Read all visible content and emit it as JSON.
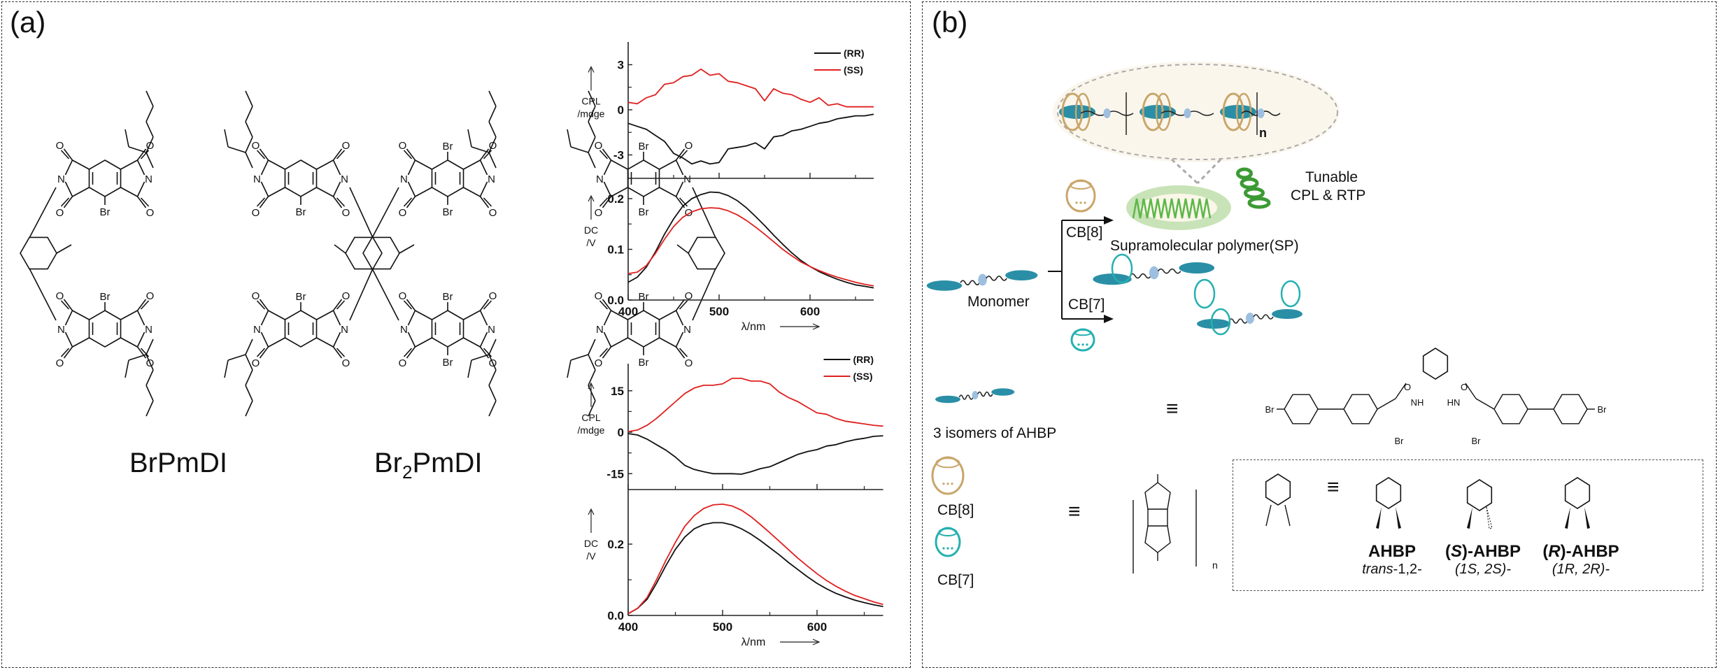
{
  "panel_a": {
    "label": "(a)",
    "molecules": [
      {
        "name": "BrPmDI"
      },
      {
        "name_main": "Br",
        "name_sub": "2",
        "name_rest": "PmDI"
      }
    ],
    "atom_labels": {
      "br": "Br",
      "o": "O",
      "n": "N",
      "nh": "NH",
      "hn": "HN"
    }
  },
  "panel_b": {
    "label": "(b)",
    "polymer_repeat": "n",
    "cb8_label": "CB[8]",
    "cb7_label": "CB[7]",
    "sp_label": "Supramolecular polymer(SP)",
    "tunable_line1": "Tunable",
    "tunable_line2": "CPL & RTP",
    "monomer_label": "Monomer",
    "isomers_label": "3 isomers of AHBP",
    "equiv": "≡",
    "cb_repeat": "n",
    "isomers": [
      {
        "name": "AHBP",
        "prefix": "",
        "config": "trans",
        "config_rest": "-1,2-"
      },
      {
        "name": "-AHBP",
        "prefix": "S",
        "config": "(1S, 2S)-",
        "config_rest": ""
      },
      {
        "name": "-AHBP",
        "prefix": "R",
        "config": "(1R, 2R)-",
        "config_rest": ""
      }
    ],
    "colors": {
      "cb8": "#c9a66b",
      "cb7": "#26b0b0",
      "monomer": "#2a8fa6",
      "viologen": "#9dbfe0",
      "sp_green": "#5cb848"
    }
  },
  "chart_data": [
    {
      "type": "line",
      "title": "BrPmDI",
      "xlabel": "λ/nm",
      "xlim": [
        400,
        670
      ],
      "xticks": [
        400,
        500,
        600
      ],
      "x": [
        400,
        410,
        420,
        430,
        440,
        450,
        460,
        470,
        480,
        490,
        500,
        510,
        520,
        530,
        540,
        550,
        560,
        570,
        580,
        590,
        600,
        610,
        620,
        630,
        640,
        650,
        660,
        670
      ],
      "legend": [
        "(RR)",
        "(SS)"
      ],
      "legend_position": "top-right",
      "colors": {
        "RR": "#111111",
        "SS": "#e02020"
      },
      "panels": [
        {
          "ylabel_1": "CPL",
          "ylabel_2": "/mdge",
          "ylim": [
            -4.5,
            4.5
          ],
          "yticks": [
            3,
            0,
            -3
          ],
          "ytick_labels": [
            "3",
            "0",
            "-3"
          ],
          "series": [
            {
              "name": "(RR)",
              "values": [
                -0.9,
                -1.1,
                -1.3,
                -1.7,
                -2.1,
                -2.9,
                -3.2,
                -3.6,
                -3.4,
                -3.6,
                -3.5,
                -2.6,
                -2.5,
                -2.4,
                -2.2,
                -2.6,
                -1.8,
                -1.7,
                -1.4,
                -1.3,
                -1.1,
                -0.9,
                -0.8,
                -0.6,
                -0.5,
                -0.4,
                -0.4,
                -0.3
              ]
            },
            {
              "name": "(SS)",
              "values": [
                0.5,
                0.4,
                0.8,
                1.0,
                1.7,
                1.8,
                2.2,
                2.3,
                2.7,
                2.3,
                2.4,
                1.9,
                1.8,
                1.6,
                1.4,
                0.6,
                1.4,
                1.1,
                1.0,
                0.7,
                0.5,
                0.8,
                0.3,
                0.4,
                0.2,
                0.2,
                0.2,
                0.2
              ]
            }
          ]
        },
        {
          "ylabel_1": "DC",
          "ylabel_2": "/V",
          "ylim": [
            0,
            0.24
          ],
          "yticks": [
            0.2,
            0.1,
            0.0
          ],
          "ytick_labels": [
            "0.2",
            "0.1",
            "0.0"
          ],
          "series": [
            {
              "name": "(RR)",
              "values": [
                0.035,
                0.045,
                0.065,
                0.095,
                0.13,
                0.16,
                0.185,
                0.2,
                0.208,
                0.213,
                0.212,
                0.206,
                0.196,
                0.182,
                0.165,
                0.147,
                0.128,
                0.11,
                0.093,
                0.078,
                0.066,
                0.056,
                0.048,
                0.041,
                0.035,
                0.03,
                0.027,
                0.024
              ]
            },
            {
              "name": "(SS)",
              "values": [
                0.052,
                0.055,
                0.068,
                0.092,
                0.12,
                0.145,
                0.163,
                0.174,
                0.18,
                0.182,
                0.181,
                0.176,
                0.168,
                0.157,
                0.144,
                0.13,
                0.115,
                0.1,
                0.087,
                0.075,
                0.066,
                0.058,
                0.051,
                0.045,
                0.04,
                0.035,
                0.031,
                0.028
              ]
            }
          ]
        }
      ]
    },
    {
      "type": "line",
      "title": "Br2PmDI",
      "xlabel": "λ/nm",
      "xlim": [
        400,
        670
      ],
      "xticks": [
        400,
        500,
        600
      ],
      "x": [
        400,
        410,
        420,
        430,
        440,
        450,
        460,
        470,
        480,
        490,
        500,
        510,
        520,
        530,
        540,
        550,
        560,
        570,
        580,
        590,
        600,
        610,
        620,
        630,
        640,
        650,
        660,
        670
      ],
      "legend": [
        "(RR)",
        "(SS)"
      ],
      "legend_position": "top-right",
      "colors": {
        "RR": "#111111",
        "SS": "#e02020"
      },
      "panels": [
        {
          "ylabel_1": "CPL",
          "ylabel_2": "/mdge",
          "ylim": [
            -20,
            25
          ],
          "yticks": [
            15,
            0,
            -15
          ],
          "ytick_labels": [
            "15",
            "0",
            "-15"
          ],
          "series": [
            {
              "name": "(RR)",
              "values": [
                -0.5,
                -1,
                -2.5,
                -4.5,
                -6.5,
                -9,
                -12,
                -13.5,
                -14.3,
                -15,
                -15,
                -15,
                -15.2,
                -14.3,
                -13.2,
                -12.5,
                -11,
                -9.5,
                -8,
                -7,
                -6.3,
                -5,
                -4.5,
                -3.5,
                -2.7,
                -2.2,
                -1.5,
                -1.3
              ]
            },
            {
              "name": "(SS)",
              "values": [
                0.2,
                0.8,
                2.5,
                5,
                8,
                11,
                14,
                16,
                17,
                17,
                17.5,
                19.5,
                19.5,
                18.5,
                18.5,
                17.5,
                14.5,
                12.5,
                11,
                9,
                7,
                6.5,
                5,
                4,
                3.5,
                3,
                2.5,
                2.2
              ]
            }
          ]
        },
        {
          "ylabel_1": "DC",
          "ylabel_2": "/V",
          "ylim": [
            0,
            0.35
          ],
          "yticks": [
            0.2,
            0.0
          ],
          "ytick_labels": [
            "0.2",
            "0.0"
          ],
          "series": [
            {
              "name": "(RR)",
              "values": [
                0.005,
                0.02,
                0.045,
                0.09,
                0.14,
                0.185,
                0.22,
                0.243,
                0.255,
                0.26,
                0.26,
                0.254,
                0.243,
                0.228,
                0.21,
                0.19,
                0.17,
                0.148,
                0.128,
                0.108,
                0.09,
                0.075,
                0.062,
                0.052,
                0.043,
                0.036,
                0.03,
                0.025
              ]
            },
            {
              "name": "(SS)",
              "values": [
                0.005,
                0.02,
                0.05,
                0.1,
                0.155,
                0.205,
                0.25,
                0.28,
                0.3,
                0.31,
                0.312,
                0.307,
                0.295,
                0.277,
                0.255,
                0.232,
                0.208,
                0.184,
                0.16,
                0.138,
                0.117,
                0.098,
                0.082,
                0.068,
                0.056,
                0.047,
                0.038,
                0.031
              ]
            }
          ]
        }
      ]
    }
  ]
}
